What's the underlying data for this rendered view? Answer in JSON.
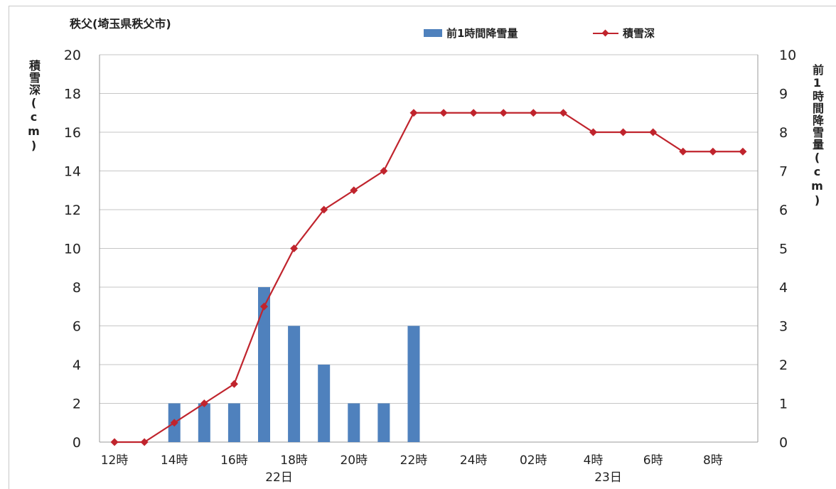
{
  "chart_data": {
    "type": "bar+line",
    "title": "秩父(埼玉県秩父市)",
    "categories": [
      "12時",
      "",
      "14時",
      "",
      "16時",
      "",
      "18時",
      "",
      "20時",
      "",
      "22時",
      "",
      "24時",
      "",
      "02時",
      "",
      "4時",
      "",
      "6時",
      "",
      "8時",
      ""
    ],
    "day_labels": [
      {
        "label": "22日",
        "index": 5.5
      },
      {
        "label": "23日",
        "index": 16.5
      }
    ],
    "series": [
      {
        "name": "前1時間降雪量",
        "type": "bar",
        "axis": "right",
        "color": "#4f81bd",
        "values": [
          0,
          0,
          1,
          1,
          1,
          4,
          3,
          2,
          1,
          1,
          3,
          0,
          0,
          0,
          0,
          0,
          0,
          0,
          0,
          0,
          0,
          0
        ]
      },
      {
        "name": "積雪深",
        "type": "line",
        "axis": "left",
        "color": "#c0242d",
        "values": [
          0,
          0,
          1,
          2,
          3,
          7,
          10,
          12,
          13,
          14,
          17,
          17,
          17,
          17,
          17,
          17,
          16,
          16,
          16,
          15,
          15,
          15
        ]
      }
    ],
    "y_left": {
      "label": "積雪深(cm)",
      "ylim": [
        0,
        20
      ],
      "ticks": [
        0,
        2,
        4,
        6,
        8,
        10,
        12,
        14,
        16,
        18,
        20
      ]
    },
    "y_right": {
      "label": "前1時間降雪量(cm)",
      "ylim": [
        0,
        10
      ],
      "ticks": [
        0,
        1,
        2,
        3,
        4,
        5,
        6,
        7,
        8,
        9,
        10
      ]
    },
    "grid": true,
    "legend": "top"
  }
}
